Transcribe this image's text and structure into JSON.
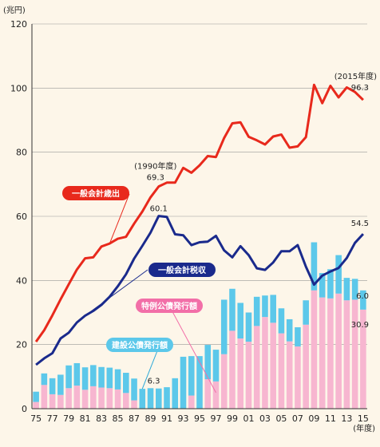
{
  "chart_data": {
    "type": "bar",
    "y_unit_label": "(兆円)",
    "x_unit_label": "(年度)",
    "ylim": [
      0,
      120
    ],
    "yticks": [
      0,
      20,
      40,
      60,
      80,
      100,
      120
    ],
    "grid": true,
    "x": [
      "75",
      "76",
      "77",
      "78",
      "79",
      "80",
      "81",
      "82",
      "83",
      "84",
      "85",
      "86",
      "87",
      "88",
      "89",
      "90",
      "91",
      "92",
      "93",
      "94",
      "95",
      "96",
      "97",
      "98",
      "99",
      "00",
      "01",
      "02",
      "03",
      "04",
      "05",
      "06",
      "07",
      "08",
      "09",
      "10",
      "11",
      "12",
      "13",
      "14",
      "15"
    ],
    "x_tick_labels": [
      "75",
      "77",
      "79",
      "81",
      "83",
      "85",
      "87",
      "89",
      "91",
      "93",
      "95",
      "97",
      "99",
      "01",
      "03",
      "05",
      "07",
      "09",
      "11",
      "13",
      "15"
    ],
    "colors": {
      "expenditure": "#e8291c",
      "tax": "#1a2a8c",
      "construction": "#5cc8ea",
      "special": "#f7b6d0",
      "grid": "#999999",
      "axis": "#333333"
    },
    "series": [
      {
        "name": "一般会計歳出",
        "kind": "line",
        "values": [
          20.9,
          24.5,
          29.1,
          34.1,
          38.8,
          43.4,
          46.9,
          47.2,
          50.6,
          51.5,
          53.0,
          53.6,
          57.7,
          61.5,
          65.9,
          69.3,
          70.5,
          70.5,
          75.1,
          73.6,
          75.9,
          78.8,
          78.5,
          84.4,
          89.0,
          89.3,
          84.8,
          83.7,
          82.4,
          84.9,
          85.5,
          81.4,
          81.8,
          84.7,
          101.0,
          95.3,
          100.7,
          97.1,
          100.2,
          98.8,
          96.3
        ],
        "label": "一般会計歳出",
        "label_color": "#e8291c"
      },
      {
        "name": "一般会計税収",
        "kind": "line",
        "values": [
          13.7,
          15.7,
          17.3,
          21.9,
          23.7,
          26.9,
          29.0,
          30.5,
          32.4,
          34.9,
          38.2,
          41.9,
          46.8,
          50.8,
          54.9,
          60.1,
          59.8,
          54.4,
          54.1,
          51.0,
          51.9,
          52.1,
          53.9,
          49.4,
          47.2,
          50.7,
          47.9,
          43.8,
          43.3,
          45.6,
          49.1,
          49.1,
          51.0,
          44.3,
          38.7,
          41.5,
          42.8,
          43.9,
          47.0,
          51.7,
          54.5
        ],
        "label": "一般会計税収",
        "label_color": "#1a2a8c"
      },
      {
        "name": "建設公債発行額",
        "kind": "bar",
        "stack": "bond",
        "values": [
          3.2,
          3.6,
          5.0,
          6.3,
          7.1,
          7.0,
          7.0,
          6.6,
          6.4,
          6.4,
          6.3,
          6.3,
          6.8,
          6.2,
          6.4,
          6.3,
          6.7,
          9.5,
          16.2,
          12.3,
          16.4,
          10.7,
          9.9,
          17.0,
          13.1,
          11.1,
          9.1,
          9.1,
          6.7,
          8.7,
          7.8,
          6.9,
          6.0,
          7.6,
          15.0,
          7.6,
          9.1,
          12.0,
          7.0,
          6.5,
          6.0
        ],
        "label": "建設公債発行額",
        "label_color": "#5cc8ea"
      },
      {
        "name": "特例公債発行額",
        "kind": "bar",
        "stack": "bond",
        "values": [
          2.1,
          7.4,
          4.5,
          4.3,
          6.4,
          7.2,
          5.9,
          7.0,
          6.6,
          6.4,
          6.0,
          4.9,
          2.6,
          0.0,
          0.0,
          0.0,
          0.0,
          0.0,
          0.0,
          4.1,
          0.0,
          9.2,
          8.5,
          17.0,
          24.3,
          21.9,
          20.9,
          25.8,
          28.6,
          26.8,
          23.5,
          21.0,
          19.4,
          26.2,
          36.9,
          34.7,
          34.4,
          35.9,
          33.8,
          34.0,
          30.9
        ],
        "label": "特例公債発行額",
        "label_color": "#f26fa8"
      }
    ],
    "annotations": {
      "peak_1990": {
        "period": "(1990年度)",
        "value": "69.3"
      },
      "tax_1990": {
        "value": "60.1"
      },
      "bond_1990": {
        "value": "6.3"
      },
      "last_2015_period": "(2015年度)",
      "exp_2015": {
        "value": "96.3"
      },
      "tax_2015": {
        "value": "54.5"
      },
      "construction_2015": {
        "value": "6.0"
      },
      "special_2015": {
        "value": "30.9"
      }
    }
  }
}
